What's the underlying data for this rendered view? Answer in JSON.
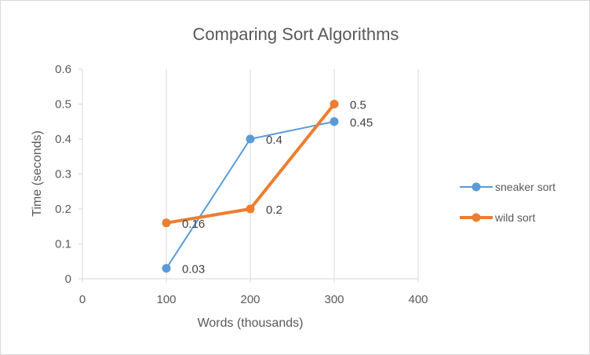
{
  "chart_data": {
    "type": "scatter",
    "title": "Comparing Sort Algorithms",
    "xlabel": "Words (thousands)",
    "ylabel": "Time (seconds)",
    "xlim": [
      0,
      400
    ],
    "ylim": [
      0,
      0.6
    ],
    "x_ticks": [
      0,
      100,
      200,
      300,
      400
    ],
    "y_ticks": [
      0,
      0.1,
      0.2,
      0.3,
      0.4,
      0.5,
      0.6
    ],
    "grid": "vertical",
    "legend_position": "right",
    "series": [
      {
        "name": "sneaker sort",
        "color": "#5b9bd5",
        "line_width": 2,
        "points": [
          {
            "x": 100,
            "y": 0.03,
            "label": "0.03"
          },
          {
            "x": 200,
            "y": 0.4,
            "label": "0.4"
          },
          {
            "x": 300,
            "y": 0.45,
            "label": "0.45"
          }
        ]
      },
      {
        "name": "wild sort",
        "color": "#ed7d31",
        "line_width": 4,
        "points": [
          {
            "x": 100,
            "y": 0.16,
            "label": "0.16"
          },
          {
            "x": 200,
            "y": 0.2,
            "label": "0.2"
          },
          {
            "x": 300,
            "y": 0.5,
            "label": "0.5"
          }
        ]
      }
    ]
  }
}
